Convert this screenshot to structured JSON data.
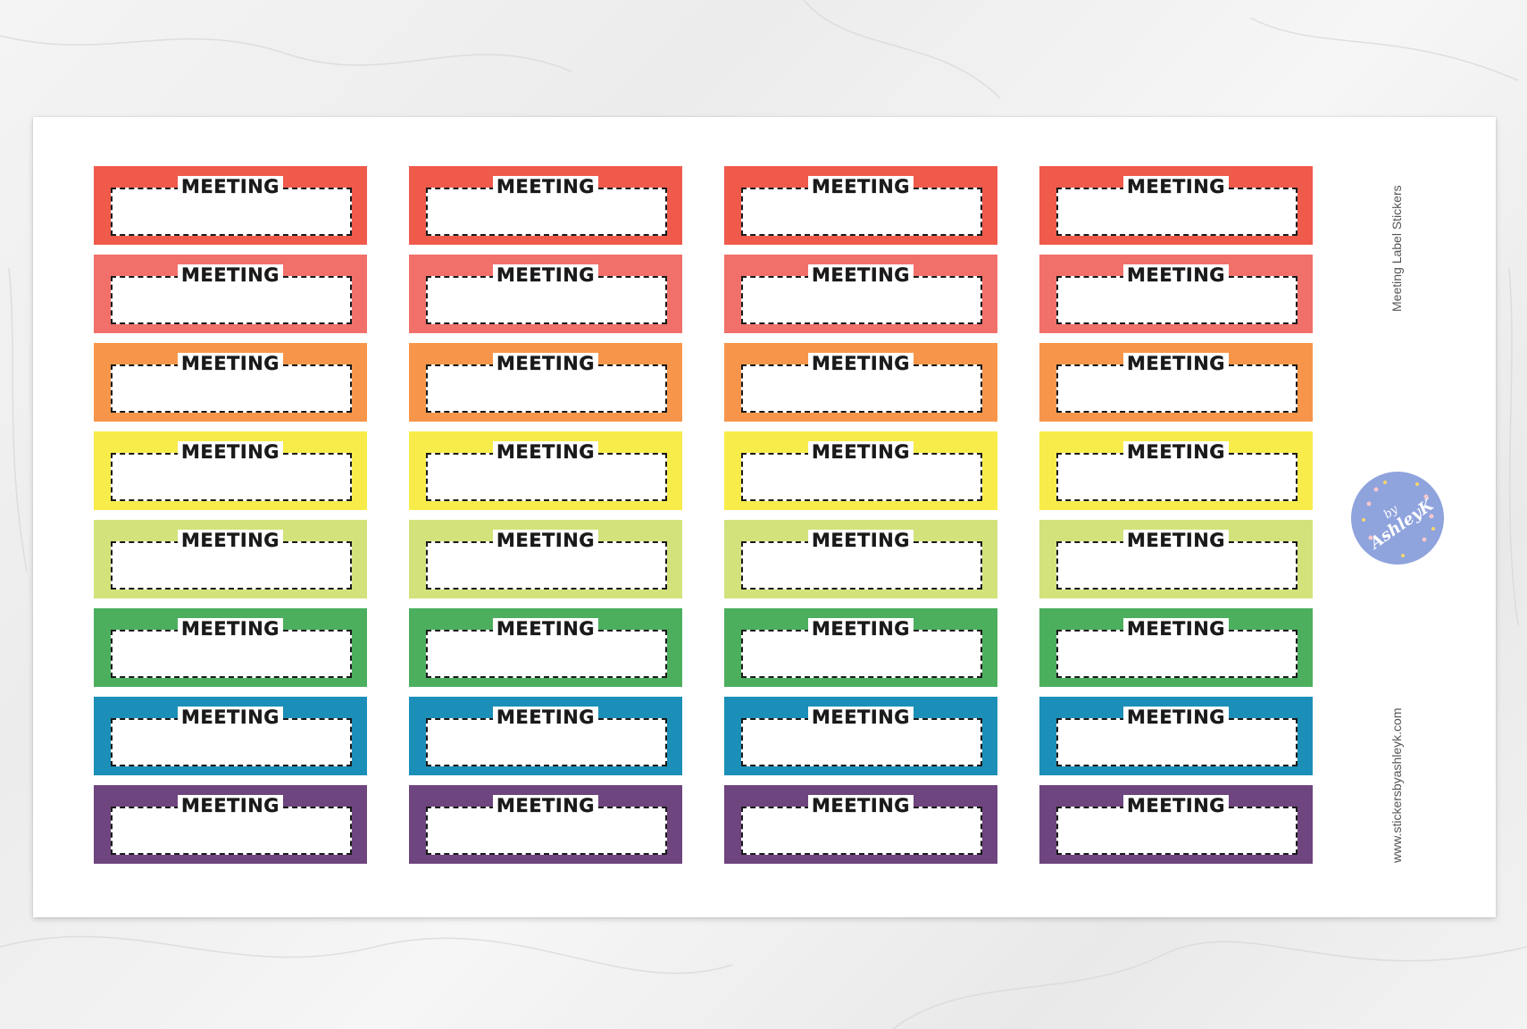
{
  "sheet": {
    "title": "Meeting Label Stickers",
    "website": "www.stickersbyashleyk.com"
  },
  "logo": {
    "line1": "by",
    "line2": "AshleyK",
    "color": "#8fa3dd"
  },
  "sticker_label": "MEETING",
  "row_colors": [
    "#ef5a4b",
    "#f2706a",
    "#f7964a",
    "#f8ec4a",
    "#d3e27a",
    "#4caf5e",
    "#1c8fb8",
    "#6e457f"
  ],
  "column_count": 4
}
